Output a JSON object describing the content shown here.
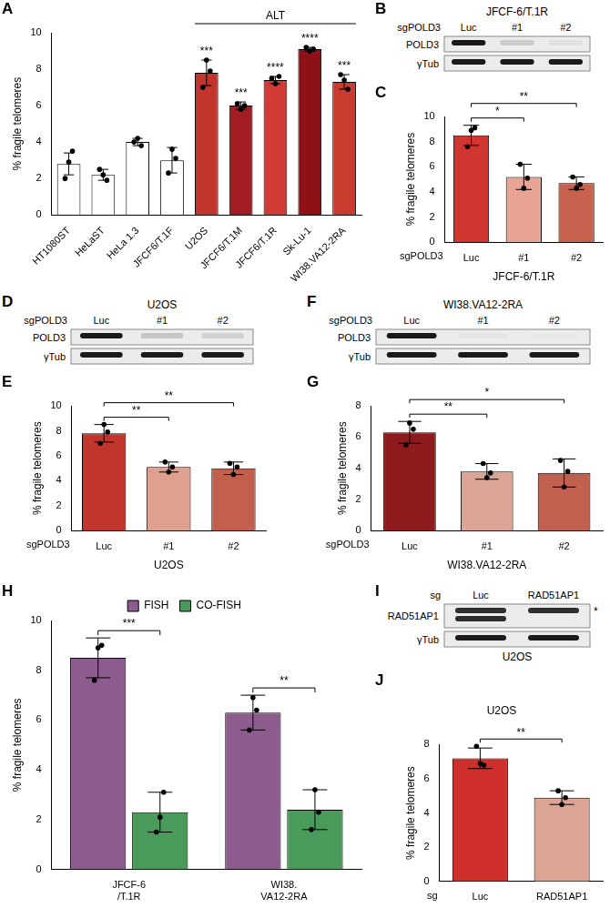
{
  "chart_data": [
    {
      "panel": "A",
      "type": "bar",
      "categories": [
        "HT1080ST",
        "HeLaST",
        "HeLa 1.3",
        "JFCF6/T.1F",
        "U2OS",
        "JFCF6/T.1M",
        "JFCF6/T.1R",
        "Sk-Lu-1",
        "WI38.VA12-2RA"
      ],
      "values": [
        2.8,
        2.2,
        4.0,
        3.0,
        7.8,
        6.0,
        7.4,
        9.1,
        7.3
      ],
      "errors": [
        0.6,
        0.3,
        0.2,
        0.7,
        0.7,
        0.2,
        0.2,
        0.1,
        0.4
      ],
      "points": [
        [
          2.0,
          2.9,
          3.5
        ],
        [
          2.5,
          2.2,
          1.9
        ],
        [
          4.0,
          4.2,
          3.8
        ],
        [
          2.3,
          3.6,
          3.1
        ],
        [
          7.0,
          8.5,
          7.9
        ],
        [
          6.1,
          5.8,
          6.0
        ],
        [
          7.5,
          7.2,
          7.6
        ],
        [
          9.2,
          9.0,
          9.1
        ],
        [
          7.7,
          7.4,
          6.9
        ]
      ],
      "colors": [
        "#ffffff",
        "#ffffff",
        "#ffffff",
        "#ffffff",
        "#c1352d",
        "#a11d21",
        "#d23a35",
        "#8d1116",
        "#c93a2f"
      ],
      "significance": [
        {
          "index": 4,
          "label": "***"
        },
        {
          "index": 5,
          "label": "***"
        },
        {
          "index": 6,
          "label": "****"
        },
        {
          "index": 7,
          "label": "****"
        },
        {
          "index": 8,
          "label": "***"
        }
      ],
      "group": {
        "label": "ALT",
        "from": 4,
        "to": 8
      },
      "y_label": "% fragile telomeres",
      "ylim": [
        0,
        10
      ],
      "yticks": [
        0,
        2,
        4,
        6,
        8,
        10
      ],
      "grid": false
    },
    {
      "panel": "B",
      "type": "blot",
      "title": "JFCF-6/T.1R",
      "lane_prefix": "sgPOLD3",
      "lanes": [
        "Luc",
        "#1",
        "#2"
      ],
      "rows": [
        {
          "label": "POLD3",
          "bands": [
            {
              "signal": [
                1,
                0.15,
                0.06
              ]
            }
          ]
        },
        {
          "label": "γTub",
          "bands": [
            {
              "signal": [
                1,
                1,
                1
              ]
            }
          ]
        }
      ]
    },
    {
      "panel": "C",
      "type": "bar",
      "categories": [
        "Luc",
        "#1",
        "#2"
      ],
      "x_prefix": "sgPOLD3",
      "x_label": "JFCF-6/T.1R",
      "values": [
        8.5,
        5.2,
        4.7
      ],
      "errors": [
        0.8,
        1.0,
        0.5
      ],
      "points": [
        [
          7.6,
          8.9,
          9.1
        ],
        [
          6.2,
          4.3,
          5.1
        ],
        [
          5.2,
          4.3,
          4.6
        ]
      ],
      "colors": [
        "#d0352f",
        "#e8a595",
        "#c8624f"
      ],
      "comparisons": [
        {
          "from": 0,
          "to": 1,
          "label": "*"
        },
        {
          "from": 0,
          "to": 2,
          "label": "**"
        }
      ],
      "y_label": "% fragile telomeres",
      "ylim": [
        0,
        10
      ],
      "yticks": [
        0,
        2,
        4,
        6,
        8,
        10
      ],
      "grid": false
    },
    {
      "panel": "D",
      "type": "blot",
      "title": "U2OS",
      "lane_prefix": "sgPOLD3",
      "lanes": [
        "Luc",
        "#1",
        "#2"
      ],
      "rows": [
        {
          "label": "POLD3",
          "bands": [
            {
              "signal": [
                1,
                0.18,
                0.12
              ]
            }
          ]
        },
        {
          "label": "γTub",
          "bands": [
            {
              "signal": [
                1,
                1,
                1
              ]
            }
          ]
        }
      ]
    },
    {
      "panel": "E",
      "type": "bar",
      "categories": [
        "Luc",
        "#1",
        "#2"
      ],
      "x_prefix": "sgPOLD3",
      "x_label": "U2OS",
      "values": [
        7.8,
        5.1,
        5.0
      ],
      "errors": [
        0.7,
        0.4,
        0.5
      ],
      "points": [
        [
          7.0,
          8.5,
          7.9
        ],
        [
          5.5,
          4.7,
          5.1
        ],
        [
          5.4,
          4.5,
          5.1
        ]
      ],
      "colors": [
        "#c0352c",
        "#e0a090",
        "#c2604d"
      ],
      "comparisons": [
        {
          "from": 0,
          "to": 1,
          "label": "**"
        },
        {
          "from": 0,
          "to": 2,
          "label": "**"
        }
      ],
      "y_label": "% fragile telomeres",
      "ylim": [
        0,
        10
      ],
      "yticks": [
        0,
        2,
        4,
        6,
        8,
        10
      ],
      "grid": false
    },
    {
      "panel": "F",
      "type": "blot",
      "title": "WI38.VA12-2RA",
      "lane_prefix": "sgPOLD3",
      "lanes": [
        "Luc",
        "#1",
        "#2"
      ],
      "rows": [
        {
          "label": "POLD3",
          "bands": [
            {
              "signal": [
                1,
                0.03,
                0.02
              ]
            }
          ]
        },
        {
          "label": "γTub",
          "bands": [
            {
              "signal": [
                1,
                1,
                1
              ]
            }
          ]
        }
      ]
    },
    {
      "panel": "G",
      "type": "bar",
      "categories": [
        "Luc",
        "#1",
        "#2"
      ],
      "x_prefix": "sgPOLD3",
      "x_label": "WI38.VA12-2RA",
      "values": [
        6.3,
        3.8,
        3.7
      ],
      "errors": [
        0.7,
        0.5,
        0.9
      ],
      "points": [
        [
          5.5,
          6.9,
          6.5
        ],
        [
          4.3,
          3.4,
          3.7
        ],
        [
          4.5,
          2.8,
          3.8
        ]
      ],
      "colors": [
        "#8e1a1e",
        "#dba495",
        "#c0604f"
      ],
      "comparisons": [
        {
          "from": 0,
          "to": 1,
          "label": "**"
        },
        {
          "from": 0,
          "to": 2,
          "label": "*"
        }
      ],
      "y_label": "% fragile telomeres",
      "ylim": [
        0,
        8
      ],
      "yticks": [
        0,
        2,
        4,
        6,
        8
      ],
      "grid": false
    },
    {
      "panel": "H",
      "type": "bar",
      "categories": [
        [
          "JFCF-6",
          "/T.1R"
        ],
        [
          "WI38.",
          "VA12-2RA"
        ]
      ],
      "series": [
        {
          "name": "FISH",
          "color": "#8e5b8f",
          "values": [
            8.5,
            6.3
          ],
          "errors": [
            0.8,
            0.7
          ],
          "points": [
            [
              7.6,
              8.9,
              9.0
            ],
            [
              5.6,
              6.9,
              6.4
            ]
          ]
        },
        {
          "name": "CO-FISH",
          "color": "#4a9a5b",
          "values": [
            2.3,
            2.4
          ],
          "errors": [
            0.8,
            0.8
          ],
          "points": [
            [
              1.5,
              2.1,
              3.1
            ],
            [
              1.6,
              3.2,
              2.3
            ]
          ]
        }
      ],
      "significance": [
        {
          "index": 0,
          "label": "***"
        },
        {
          "index": 1,
          "label": "**"
        }
      ],
      "legend": "top",
      "y_label": "% fragile telomeres",
      "ylim": [
        0,
        10
      ],
      "yticks": [
        0,
        2,
        4,
        6,
        8,
        10
      ],
      "grid": false
    },
    {
      "panel": "I",
      "type": "blot",
      "footer": "U2OS",
      "lane_prefix": "sg",
      "lanes": [
        "Luc",
        "RAD51AP1"
      ],
      "rows": [
        {
          "label": "RAD51AP1",
          "bands": [
            {
              "signal": [
                0.9,
                0.9
              ],
              "mark": "*"
            },
            {
              "signal": [
                0.9,
                0
              ]
            }
          ]
        },
        {
          "label": "γTub",
          "bands": [
            {
              "signal": [
                1,
                1
              ]
            }
          ]
        }
      ]
    },
    {
      "panel": "J",
      "type": "bar",
      "title": "U2OS",
      "categories": [
        "Luc",
        "RAD51AP1"
      ],
      "x_prefix": "sg",
      "values": [
        7.2,
        4.9
      ],
      "errors": [
        0.6,
        0.4
      ],
      "points": [
        [
          7.9,
          6.9,
          6.8
        ],
        [
          5.3,
          4.5,
          4.9
        ]
      ],
      "colors": [
        "#cf2f2a",
        "#dba495"
      ],
      "comparisons": [
        {
          "from": 0,
          "to": 1,
          "label": "**"
        }
      ],
      "y_label": "% fragile telomeres",
      "ylim": [
        0,
        8
      ],
      "yticks": [
        0,
        2,
        4,
        6,
        8
      ],
      "grid": false
    }
  ]
}
